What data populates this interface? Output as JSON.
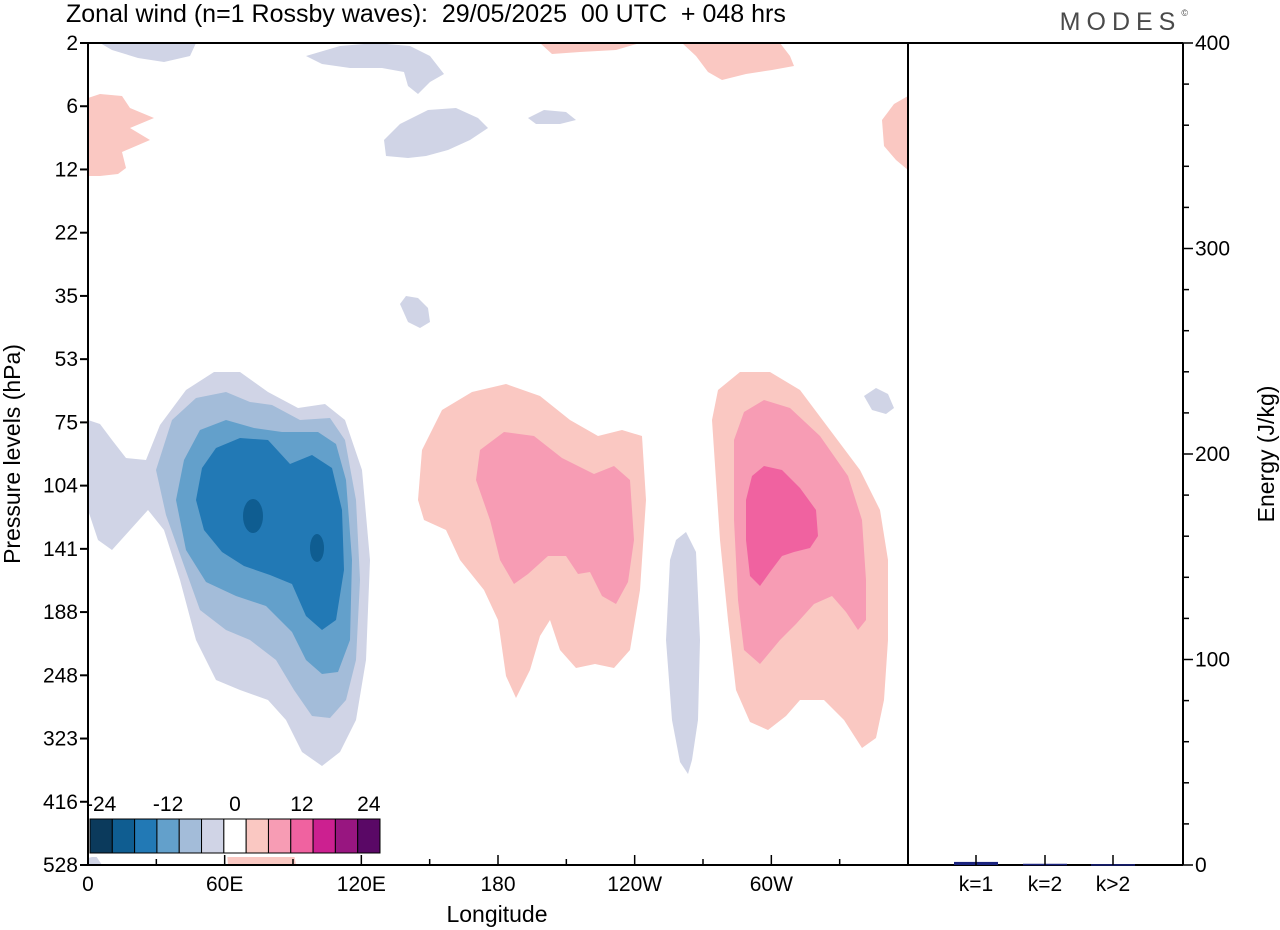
{
  "title": "Zonal wind (n=1 Rossby waves):  29/05/2025  00 UTC  + 048 hrs",
  "brand": "MODES",
  "brand_mark": "©",
  "chart_data": [
    {
      "type": "heatmap",
      "title": "Zonal wind (n=1 Rossby waves):  29/05/2025  00 UTC  + 048 hrs",
      "xlabel": "Longitude",
      "ylabel": "Pressure levels (hPa)",
      "x_ticks": [
        "0",
        "60E",
        "120E",
        "180",
        "120W",
        "60W"
      ],
      "x_tick_degrees": [
        0,
        60,
        120,
        180,
        240,
        300
      ],
      "xlim": [
        0,
        360
      ],
      "y_ticks": [
        "2",
        "6",
        "12",
        "22",
        "35",
        "53",
        "75",
        "104",
        "141",
        "188",
        "248",
        "323",
        "416",
        "528"
      ],
      "y_scale": "pressure levels (irregular, top = 2 hPa, bottom = 528 hPa)",
      "colorbar": {
        "placement": "bottom-left inside plot",
        "labels": [
          "-24",
          "-12",
          "0",
          "12",
          "24"
        ],
        "colors": [
          "#0b3a5c",
          "#0f5d91",
          "#2279b5",
          "#63a0cb",
          "#a3bcd9",
          "#d0d4e6",
          "#ffffff",
          "#fac8c2",
          "#f79cb4",
          "#f062a0",
          "#cc2090",
          "#981680",
          "#5a0866"
        ]
      },
      "features": [
        {
          "sign": "negative",
          "min_level": -24,
          "lon_range": [
            0,
            125
          ],
          "hPa_range": [
            53,
            416
          ],
          "core": "near 75E, 104-141 hPa"
        },
        {
          "sign": "positive",
          "max_level": 12,
          "lon_range": [
            145,
            245
          ],
          "hPa_range": [
            75,
            248
          ],
          "core": "near 200, 104-141 hPa"
        },
        {
          "sign": "negative",
          "min_level": -6,
          "lon_range": [
            255,
            270
          ],
          "hPa_range": [
            141,
            416
          ]
        },
        {
          "sign": "positive",
          "max_level": 18,
          "lon_range": [
            275,
            350
          ],
          "hPa_range": [
            53,
            323
          ],
          "core": "near 65W, 104-141 hPa"
        },
        {
          "sign": "positive",
          "max_level": 6,
          "lon_range": [
            0,
            25
          ],
          "hPa_range": [
            6,
            12
          ]
        },
        {
          "sign": "negative",
          "min_level": -6,
          "lon_range": [
            130,
            175
          ],
          "hPa_range": [
            2,
            12
          ]
        }
      ],
      "grid": false
    },
    {
      "type": "bar",
      "ylabel": "Energy (J/kg)",
      "categories": [
        "k=1",
        "k=2",
        "k>2"
      ],
      "values": [
        1.5,
        0.6,
        0.4
      ],
      "ylim": [
        0,
        400
      ],
      "y_ticks": [
        "0",
        "100",
        "200",
        "300",
        "400"
      ],
      "bar_color": "#1a237e"
    }
  ]
}
